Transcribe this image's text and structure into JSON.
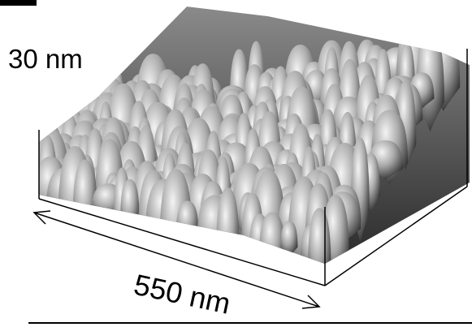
{
  "labels": {
    "height": "30 nm",
    "width": "550 nm"
  }
}
